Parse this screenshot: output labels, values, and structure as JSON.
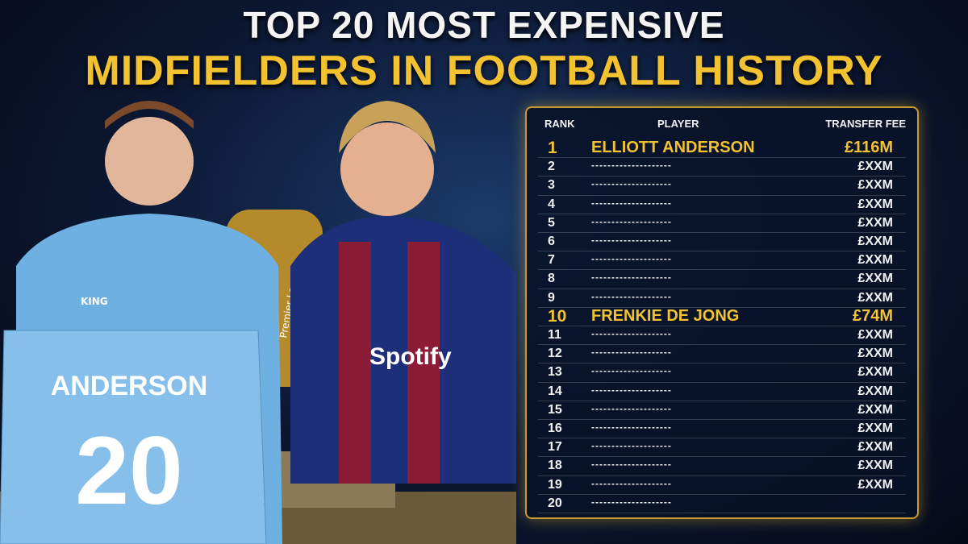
{
  "header": {
    "title_line1": "TOP 20 MOST EXPENSIVE",
    "title_line2": "MIDFIELDERS IN FOOTBALL HISTORY"
  },
  "table": {
    "columns": [
      "RANK",
      "PLAYER",
      "TRANSFER FEE"
    ],
    "rows": [
      {
        "rank": 1,
        "player": "ELLIOTT ANDERSON",
        "fee": "£116M",
        "color": "#f2c230"
      },
      {
        "rank": 2,
        "player": "--------------------",
        "fee": "£XXM"
      },
      {
        "rank": 3,
        "player": "--------------------",
        "fee": "£XXM"
      },
      {
        "rank": 4,
        "player": "--------------------",
        "fee": "£XXM"
      },
      {
        "rank": 5,
        "player": "--------------------",
        "fee": "£XXM"
      },
      {
        "rank": 6,
        "player": "--------------------",
        "fee": "£XXM"
      },
      {
        "rank": 7,
        "player": "--------------------",
        "fee": "£XXM"
      },
      {
        "rank": 8,
        "player": "--------------------",
        "fee": "£XXM"
      },
      {
        "rank": 9,
        "player": "--------------------",
        "fee": "£XXM"
      },
      {
        "rank": 10,
        "player": "FRENKIE DE JONG",
        "fee": "£74M",
        "color": "#f2c230"
      },
      {
        "rank": 11,
        "player": "--------------------",
        "fee": "£XXM"
      },
      {
        "rank": 12,
        "player": "--------------------",
        "fee": "£XXM"
      },
      {
        "rank": 13,
        "player": "--------------------",
        "fee": "£XXM"
      },
      {
        "rank": 14,
        "player": "--------------------",
        "fee": "£XXM"
      },
      {
        "rank": 15,
        "player": "--------------------",
        "fee": "£XXM"
      },
      {
        "rank": 16,
        "player": "--------------------",
        "fee": "£XXM"
      },
      {
        "rank": 17,
        "player": "--------------------",
        "fee": "£XXM"
      },
      {
        "rank": 18,
        "player": "--------------------",
        "fee": "£XXM"
      },
      {
        "rank": 19,
        "player": "--------------------",
        "fee": "£XXM"
      },
      {
        "rank": 20,
        "player": "--------------------"
      }
    ]
  },
  "image": {
    "shirt_name": "ANDERSON",
    "shirt_number": "20",
    "brand": "KING",
    "sponsor": "Spotify",
    "trophy_text": "Premier League"
  }
}
